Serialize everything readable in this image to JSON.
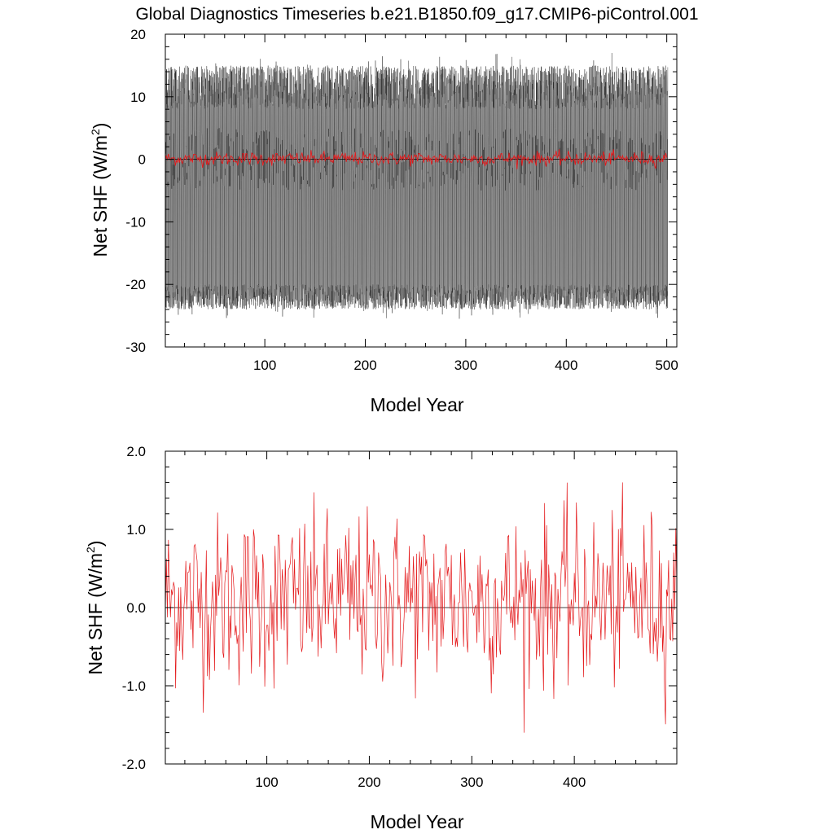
{
  "title": "Global Diagnostics Timeseries b.e21.B1850.f09_g17.CMIP6-piControl.001",
  "colors": {
    "monthly": "#222222",
    "annual": "#e41a1c",
    "zero_line": "#000000",
    "frame": "#000000"
  },
  "chart_data": [
    {
      "type": "line",
      "xlabel": "Model Year",
      "ylabel": "Net SHF (W/m",
      "ylabel_sup": "2",
      "ylabel_close": ")",
      "xlim": [
        1,
        510
      ],
      "ylim": [
        -30,
        20
      ],
      "xticks": [
        100,
        200,
        300,
        400,
        500
      ],
      "xtick_labels": [
        "100",
        "200",
        "300",
        "400",
        "500"
      ],
      "yticks": [
        -30,
        -20,
        -10,
        0,
        10,
        20
      ],
      "ytick_labels": [
        "-30",
        "-20",
        "-10",
        "0",
        "10",
        "20"
      ],
      "zero_line": 0,
      "series": [
        {
          "role": "monthly",
          "color": "#222222",
          "years": [
            1,
            501
          ],
          "seasonal_min_range": [
            -25,
            -20
          ],
          "seasonal_max_range": [
            10,
            17
          ]
        },
        {
          "role": "annual",
          "color": "#e41a1c",
          "years": [
            1,
            501
          ],
          "value_range": [
            -1.6,
            1.6
          ]
        }
      ]
    },
    {
      "type": "line",
      "xlabel": "Model Year",
      "ylabel": "Net SHF (W/m",
      "ylabel_sup": "2",
      "ylabel_close": ")",
      "xlim": [
        1,
        500
      ],
      "ylim": [
        -2.0,
        2.0
      ],
      "xticks": [
        100,
        200,
        300,
        400
      ],
      "xtick_labels": [
        "100",
        "200",
        "300",
        "400"
      ],
      "yticks": [
        -2.0,
        -1.0,
        0.0,
        1.0,
        2.0
      ],
      "ytick_labels": [
        "-2.0",
        "-1.0",
        "0.0",
        "1.0",
        "2.0"
      ],
      "zero_line": 0,
      "series": [
        {
          "role": "annual",
          "color": "#e41a1c",
          "years": [
            1,
            500
          ],
          "value_range": [
            -1.6,
            1.6
          ]
        }
      ]
    }
  ]
}
